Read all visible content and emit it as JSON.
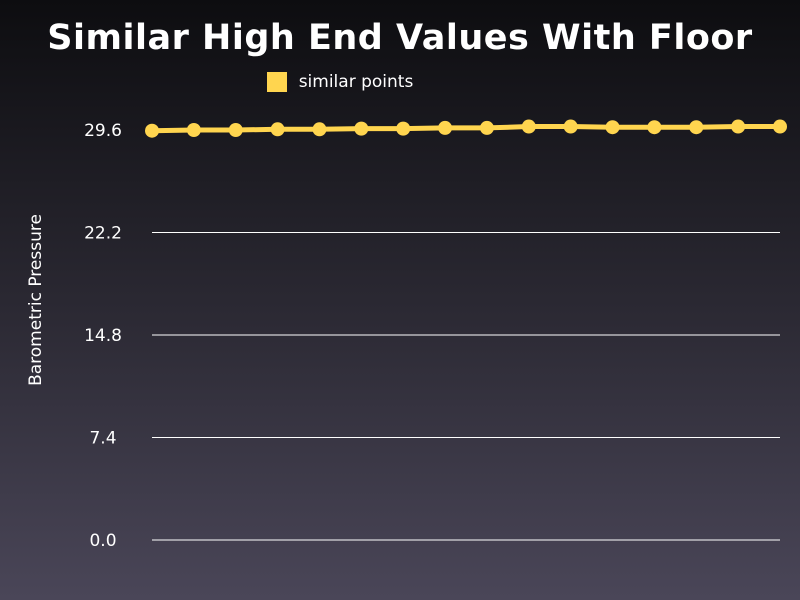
{
  "chart_data": {
    "type": "line",
    "title": "Similar High End Values With Floor",
    "xlabel": "",
    "ylabel": "Barometric Pressure",
    "ylim": [
      0.0,
      29.6
    ],
    "yticks": [
      "0.0",
      "7.4",
      "14.8",
      "22.2",
      "29.6"
    ],
    "ytick_values": [
      0.0,
      7.4,
      14.8,
      22.2,
      29.6
    ],
    "grid": true,
    "legend_position": "top-center",
    "series": [
      {
        "name": "similar points",
        "color": "#ffd54f",
        "values": [
          29.55,
          29.6,
          29.6,
          29.65,
          29.65,
          29.7,
          29.7,
          29.75,
          29.75,
          29.85,
          29.85,
          29.8,
          29.8,
          29.8,
          29.85,
          29.85
        ]
      }
    ]
  }
}
